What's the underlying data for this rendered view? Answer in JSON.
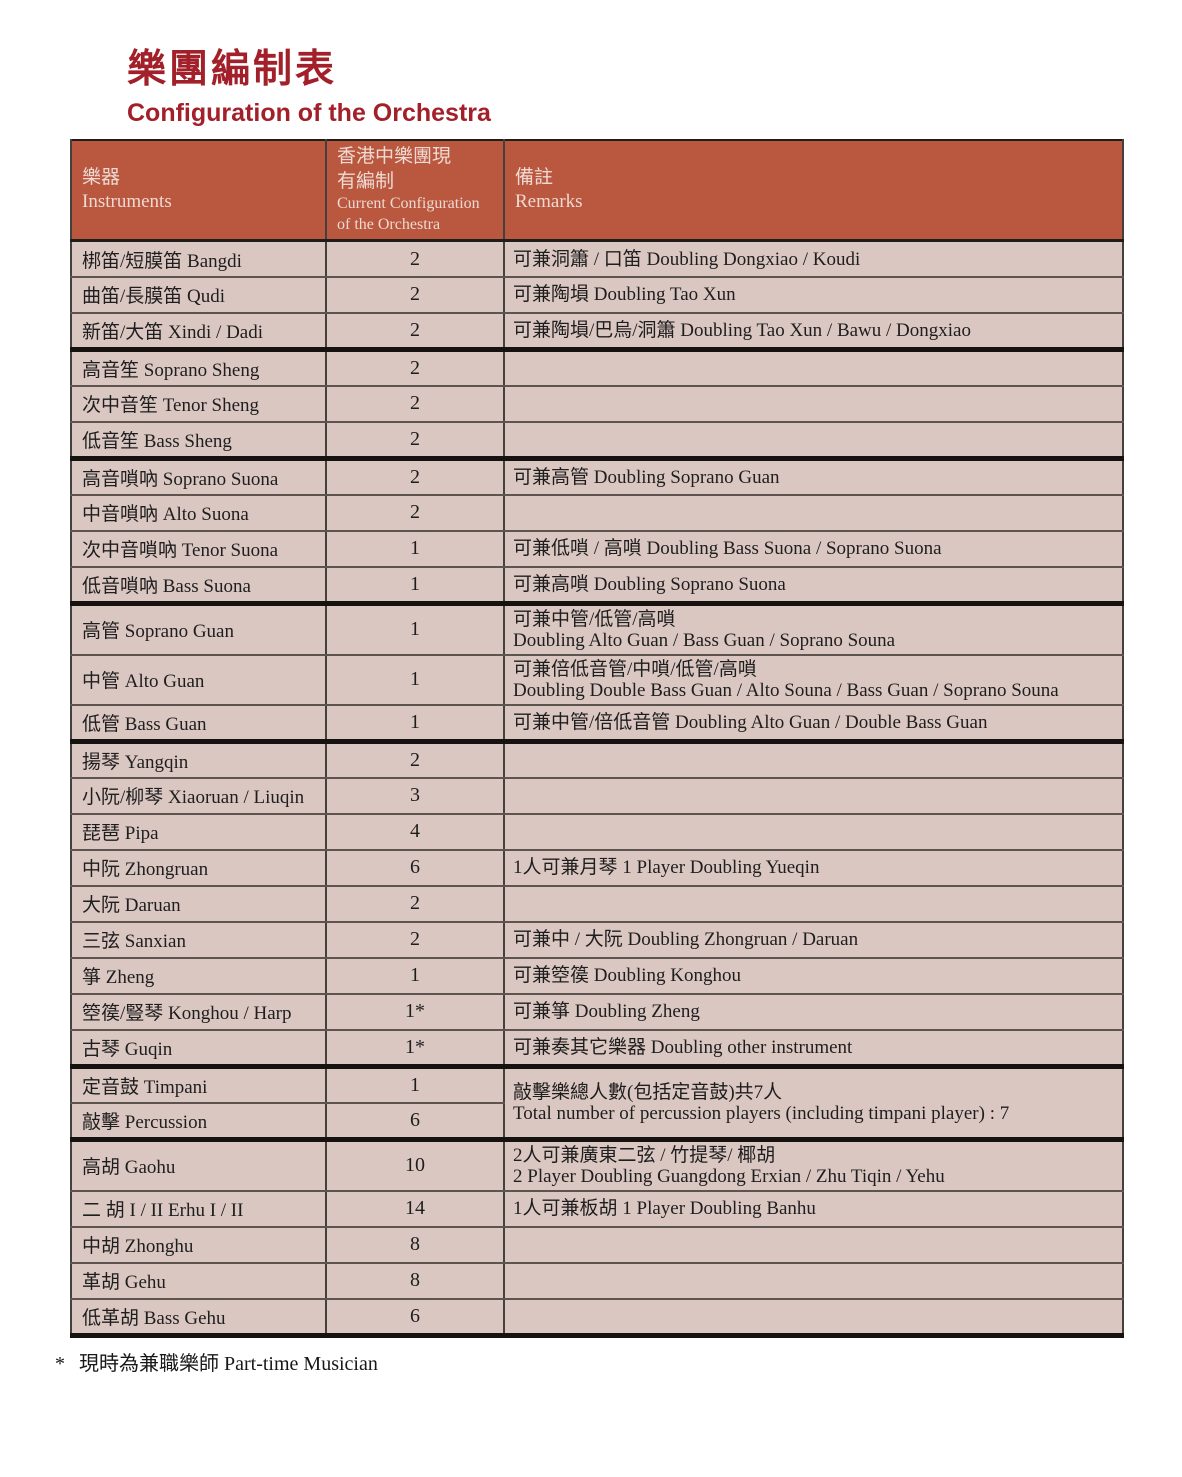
{
  "page": {
    "title_zh": "樂團編制表",
    "title_en": "Configuration of the Orchestra"
  },
  "colors": {
    "title": "#A2202A",
    "header_bg": "#B9573F",
    "header_text": "#EEDAD2",
    "row_bg": "#DBC7C2",
    "body_text": "#1E1E1E"
  },
  "table": {
    "headers": {
      "instruments": [
        "樂器",
        "Instruments"
      ],
      "configuration": [
        "香港中樂團現",
        "有編制",
        "Current Configuration",
        "of the Orchestra"
      ],
      "remarks": [
        "備註",
        "Remarks"
      ]
    },
    "groups": [
      {
        "name": "di-flutes",
        "rows": [
          {
            "instrument": "梆笛/短膜笛 Bangdi",
            "count": "2",
            "remark": [
              "可兼洞簫 / 口笛 Doubling Dongxiao / Koudi"
            ]
          },
          {
            "instrument": "曲笛/長膜笛 Qudi",
            "count": "2",
            "remark": [
              "可兼陶塤 Doubling Tao Xun"
            ]
          },
          {
            "instrument": "新笛/大笛 Xindi / Dadi",
            "count": "2",
            "remark": [
              "可兼陶塤/巴烏/洞簫 Doubling Tao Xun / Bawu / Dongxiao"
            ]
          }
        ]
      },
      {
        "name": "sheng",
        "rows": [
          {
            "instrument": "高音笙 Soprano Sheng",
            "count": "2",
            "remark": []
          },
          {
            "instrument": "次中音笙 Tenor Sheng",
            "count": "2",
            "remark": []
          },
          {
            "instrument": "低音笙 Bass Sheng",
            "count": "2",
            "remark": []
          }
        ]
      },
      {
        "name": "suona",
        "rows": [
          {
            "instrument": "高音嗩吶 Soprano Suona",
            "count": "2",
            "remark": [
              "可兼高管 Doubling Soprano Guan"
            ]
          },
          {
            "instrument": "中音嗩吶 Alto Suona",
            "count": "2",
            "remark": []
          },
          {
            "instrument": "次中音嗩吶 Tenor Suona",
            "count": "1",
            "remark": [
              "可兼低嗩 / 高嗩 Doubling Bass Suona / Soprano Suona"
            ]
          },
          {
            "instrument": "低音嗩吶 Bass Suona",
            "count": "1",
            "remark": [
              "可兼高嗩 Doubling Soprano Suona"
            ]
          }
        ]
      },
      {
        "name": "guan",
        "rows": [
          {
            "instrument": "高管 Soprano Guan",
            "count": "1",
            "tall": true,
            "remark": [
              "可兼中管/低管/高嗩",
              "Doubling Alto Guan / Bass Guan / Soprano Souna"
            ]
          },
          {
            "instrument": "中管 Alto Guan",
            "count": "1",
            "tall": true,
            "remark": [
              "可兼倍低音管/中嗩/低管/高嗩",
              "Doubling Double Bass Guan / Alto Souna / Bass Guan / Soprano Souna"
            ]
          },
          {
            "instrument": "低管 Bass Guan",
            "count": "1",
            "remark": [
              "可兼中管/倍低音管 Doubling Alto Guan / Double Bass Guan"
            ]
          }
        ]
      },
      {
        "name": "plucked-strings",
        "rows": [
          {
            "instrument": "揚琴 Yangqin",
            "count": "2",
            "remark": []
          },
          {
            "instrument": "小阮/柳琴 Xiaoruan / Liuqin",
            "count": "3",
            "remark": []
          },
          {
            "instrument": "琵琶 Pipa",
            "count": "4",
            "remark": []
          },
          {
            "instrument": "中阮 Zhongruan",
            "count": "6",
            "remark": [
              "1人可兼月琴 1 Player Doubling Yueqin"
            ]
          },
          {
            "instrument": "大阮 Daruan",
            "count": "2",
            "remark": []
          },
          {
            "instrument": "三弦 Sanxian",
            "count": "2",
            "remark": [
              "可兼中 / 大阮 Doubling Zhongruan / Daruan"
            ]
          },
          {
            "instrument": "箏 Zheng",
            "count": "1",
            "remark": [
              "可兼箜篌 Doubling Konghou"
            ]
          },
          {
            "instrument": "箜篌/豎琴 Konghou / Harp",
            "count": "1*",
            "remark": [
              "可兼箏 Doubling Zheng"
            ]
          },
          {
            "instrument": "古琴 Guqin",
            "count": "1*",
            "remark": [
              "可兼奏其它樂器 Doubling other instrument"
            ]
          }
        ]
      },
      {
        "name": "percussion",
        "merged_remark": [
          "敲擊樂總人數(包括定音鼓)共7人",
          "Total number of percussion players (including timpani player) : 7"
        ],
        "rows": [
          {
            "instrument": "定音鼓 Timpani",
            "count": "1"
          },
          {
            "instrument": "敲擊 Percussion",
            "count": "6"
          }
        ]
      },
      {
        "name": "bowed-strings",
        "rows": [
          {
            "instrument": "高胡 Gaohu",
            "count": "10",
            "tall": true,
            "remark": [
              "2人可兼廣東二弦 / 竹提琴/ 椰胡",
              "2 Player Doubling Guangdong Erxian / Zhu Tiqin / Yehu"
            ]
          },
          {
            "instrument": "二 胡 I / II Erhu I / II",
            "count": "14",
            "remark": [
              "1人可兼板胡 1 Player Doubling Banhu"
            ]
          },
          {
            "instrument": "中胡 Zhonghu",
            "count": "8",
            "remark": []
          },
          {
            "instrument": "革胡 Gehu",
            "count": "8",
            "remark": []
          },
          {
            "instrument": "低革胡 Bass Gehu",
            "count": "6",
            "remark": []
          }
        ]
      }
    ]
  },
  "footnote": {
    "marker": "*",
    "text": "現時為兼職樂師 Part-time Musician"
  }
}
